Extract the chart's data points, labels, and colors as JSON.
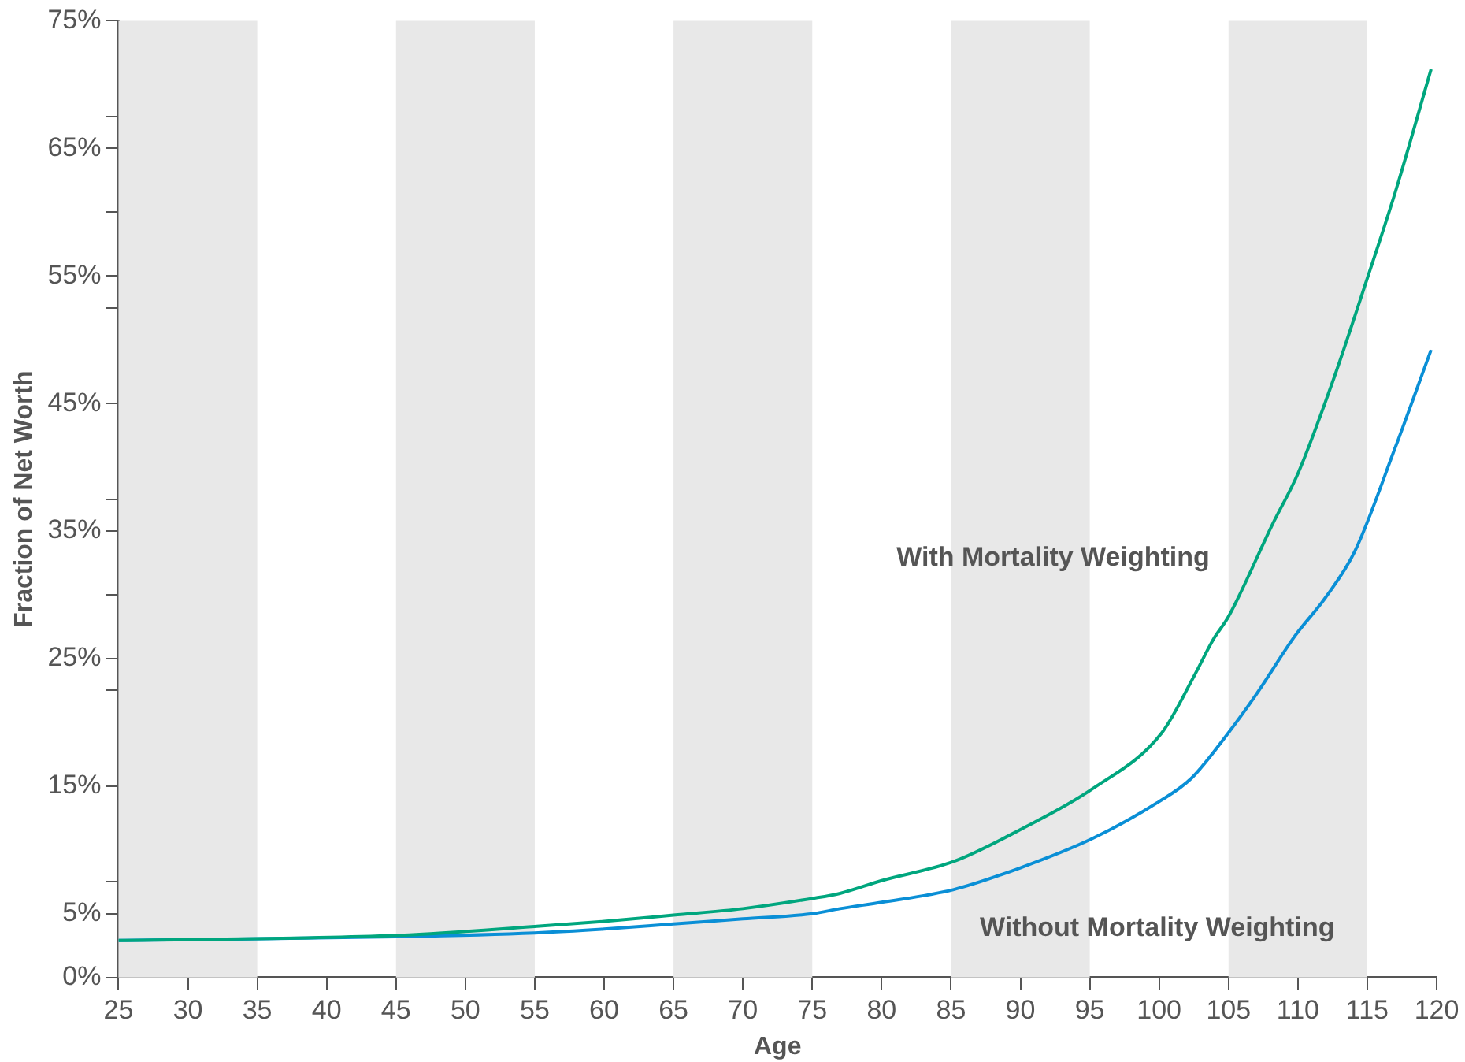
{
  "chart_data": {
    "type": "line",
    "xlabel": "Age",
    "ylabel": "Fraction of Net Worth",
    "xlim": [
      25,
      120
    ],
    "xticks": [
      25,
      30,
      35,
      40,
      45,
      50,
      55,
      60,
      65,
      70,
      75,
      80,
      85,
      90,
      95,
      100,
      105,
      110,
      115,
      120
    ],
    "ylim": [
      0,
      75
    ],
    "yticks": [
      {
        "value": 0,
        "label": "0%"
      },
      {
        "value": 5,
        "label": "5%"
      },
      {
        "value": 7.5,
        "label": null
      },
      {
        "value": 15,
        "label": "15%"
      },
      {
        "value": 22.5,
        "label": null
      },
      {
        "value": 25,
        "label": "25%"
      },
      {
        "value": 30,
        "label": null
      },
      {
        "value": 35,
        "label": "35%"
      },
      {
        "value": 37.5,
        "label": null
      },
      {
        "value": 45,
        "label": "45%"
      },
      {
        "value": 52.5,
        "label": null
      },
      {
        "value": 55,
        "label": "55%"
      },
      {
        "value": 60,
        "label": null
      },
      {
        "value": 65,
        "label": "65%"
      },
      {
        "value": 67.5,
        "label": null
      },
      {
        "value": 75,
        "label": "75%"
      }
    ],
    "grid": false,
    "legend": false,
    "marker": "none",
    "line_style": "solid",
    "bands": [
      {
        "axis": "x",
        "from": 25,
        "to": 35,
        "color": "#e8e8e8"
      },
      {
        "axis": "x",
        "from": 45,
        "to": 55,
        "color": "#e8e8e8"
      },
      {
        "axis": "x",
        "from": 65,
        "to": 75,
        "color": "#e8e8e8"
      },
      {
        "axis": "x",
        "from": 85,
        "to": 95,
        "color": "#e8e8e8"
      },
      {
        "axis": "x",
        "from": 105,
        "to": 115,
        "color": "#e8e8e8"
      }
    ],
    "series": [
      {
        "color": "#00a67e",
        "x": [
          25,
          45,
          55,
          60,
          65,
          70,
          75,
          77,
          80,
          85.2,
          90,
          95.2,
          100.2,
          102.5,
          103.9,
          105,
          108.2,
          110,
          112.6,
          115,
          117,
          119.6
        ],
        "values": [
          2.9,
          3.3,
          4.0,
          4.4,
          4.9,
          5.4,
          6.2,
          6.6,
          7.6,
          9.1,
          11.6,
          14.8,
          19.2,
          23.6,
          26.5,
          28.3,
          35.6,
          39.5,
          47.0,
          54.8,
          61.5,
          71.2
        ]
      },
      {
        "color": "#0a8fd6",
        "x": [
          25,
          45,
          55,
          60,
          65,
          70,
          75,
          77,
          80,
          85.2,
          90,
          95.2,
          100,
          102.3,
          105,
          107,
          109.8,
          112,
          114.1,
          117,
          119.6
        ],
        "values": [
          2.9,
          3.2,
          3.5,
          3.8,
          4.2,
          4.6,
          5.0,
          5.4,
          5.9,
          6.9,
          8.6,
          10.9,
          13.8,
          15.6,
          19.2,
          22.2,
          26.8,
          29.8,
          33.4,
          41.5,
          49.2
        ]
      }
    ],
    "annotations": [
      "With Mortality Weighting",
      "Without Mortality Weighting"
    ]
  }
}
